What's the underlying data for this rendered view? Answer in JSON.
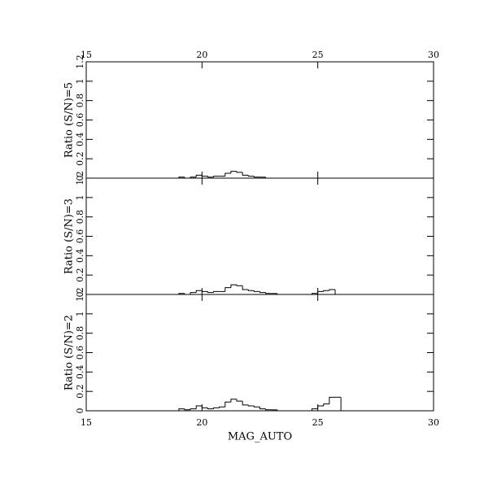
{
  "chart_data": [
    {
      "type": "histogram",
      "ylabel": "Ratio (S/N)=5",
      "bins": [
        18.75,
        19,
        19.25,
        19.5,
        19.75,
        20,
        20.25,
        20.5,
        20.75,
        21,
        21.25,
        21.5,
        21.75,
        22,
        22.25,
        22.5,
        22.75,
        23,
        23.25,
        23.5,
        23.75,
        24,
        24.25,
        24.5,
        24.75,
        25,
        25.25,
        25.5,
        25.75,
        26,
        26.25
      ],
      "values": [
        0,
        0.01,
        0,
        0.01,
        0.03,
        0.02,
        0.01,
        0.02,
        0.02,
        0.05,
        0.07,
        0.06,
        0.03,
        0.02,
        0.01,
        0.01,
        0,
        0,
        0,
        0,
        0,
        0,
        0,
        0,
        0,
        0,
        0,
        0,
        0,
        0
      ],
      "xlim": [
        15,
        30
      ],
      "xticks": [
        15,
        20,
        25,
        30
      ],
      "ylim": [
        0,
        1.2
      ],
      "yticks": [
        0,
        0.2,
        0.4,
        0.6,
        0.8,
        1,
        1.2
      ]
    },
    {
      "type": "histogram",
      "ylabel": "Ratio (S/N)=3",
      "bins": [
        18.75,
        19,
        19.25,
        19.5,
        19.75,
        20,
        20.25,
        20.5,
        20.75,
        21,
        21.25,
        21.5,
        21.75,
        22,
        22.25,
        22.5,
        22.75,
        23,
        23.25,
        23.5,
        23.75,
        24,
        24.25,
        24.5,
        24.75,
        25,
        25.25,
        25.5,
        25.75,
        26,
        26.25
      ],
      "values": [
        0,
        0.01,
        0,
        0.02,
        0.04,
        0.03,
        0.02,
        0.03,
        0.03,
        0.07,
        0.1,
        0.09,
        0.05,
        0.04,
        0.03,
        0.02,
        0.01,
        0.01,
        0,
        0,
        0,
        0,
        0,
        0,
        0.01,
        0.03,
        0.04,
        0.05,
        0,
        0
      ],
      "xlim": [
        15,
        30
      ],
      "xticks": [
        15,
        20,
        25,
        30
      ],
      "ylim": [
        0,
        1.2
      ],
      "yticks": [
        0,
        0.2,
        0.4,
        0.6,
        0.8,
        1,
        1.2
      ]
    },
    {
      "type": "histogram",
      "ylabel": "Ratio (S/N)=2",
      "xlabel": "MAG_AUTO",
      "bins": [
        18.75,
        19,
        19.25,
        19.5,
        19.75,
        20,
        20.25,
        20.5,
        20.75,
        21,
        21.25,
        21.5,
        21.75,
        22,
        22.25,
        22.5,
        22.75,
        23,
        23.25,
        23.5,
        23.75,
        24,
        24.25,
        24.5,
        24.75,
        25,
        25.25,
        25.5,
        25.75,
        26,
        26.25
      ],
      "values": [
        0,
        0.02,
        0.01,
        0.02,
        0.05,
        0.03,
        0.02,
        0.03,
        0.04,
        0.09,
        0.12,
        0.1,
        0.06,
        0.05,
        0.04,
        0.02,
        0.01,
        0.01,
        0,
        0,
        0,
        0,
        0,
        0,
        0.02,
        0.05,
        0.07,
        0.14,
        0.14,
        0
      ],
      "xlim": [
        15,
        30
      ],
      "xticks": [
        15,
        20,
        25,
        30
      ],
      "ylim": [
        0,
        1.2
      ],
      "yticks": [
        0,
        0.2,
        0.4,
        0.6,
        0.8,
        1,
        1.2
      ]
    }
  ]
}
